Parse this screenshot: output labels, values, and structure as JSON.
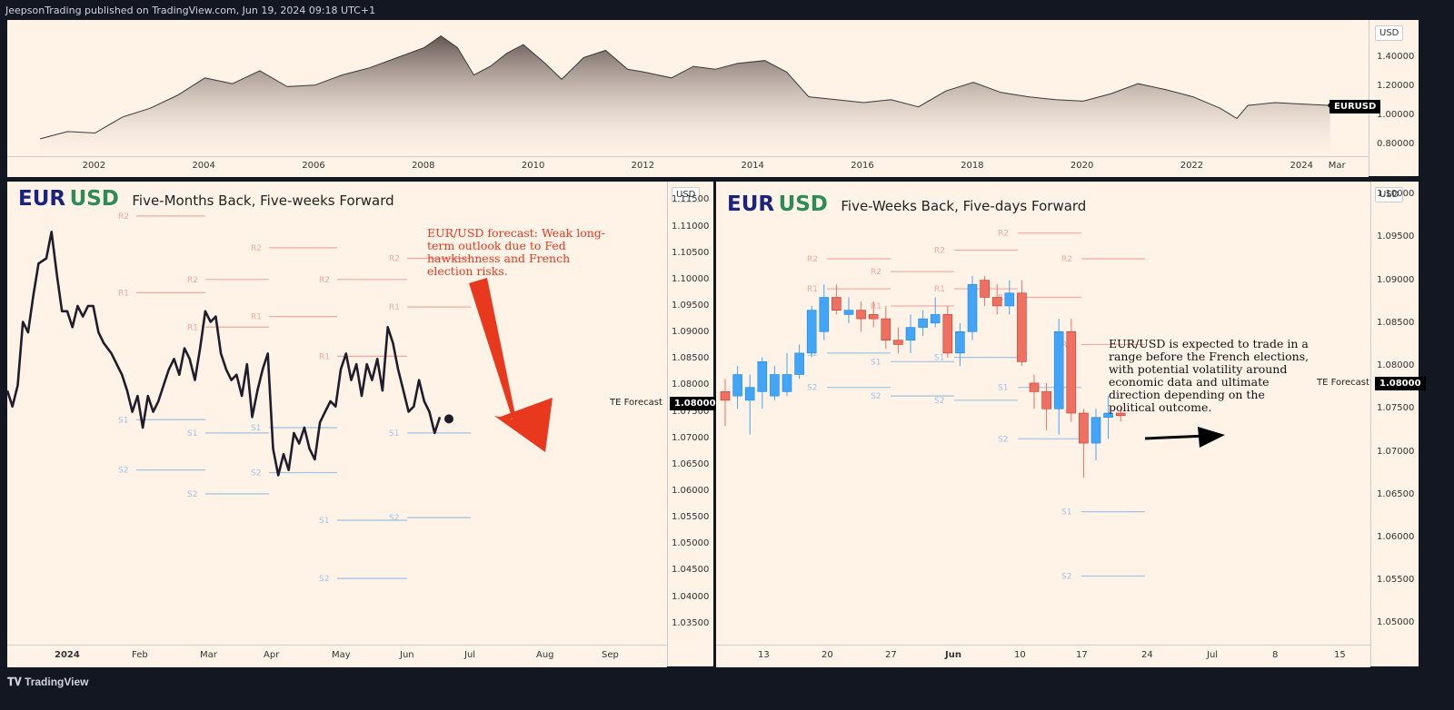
{
  "header": {
    "text": "JeepsonTrading published on TradingView.com, Jun 19, 2024 09:18 UTC+1"
  },
  "footer": {
    "brand": "TradingView"
  },
  "colors": {
    "background": "#fff3e8",
    "resistance": "#f4a79d",
    "support": "#9ec3e6",
    "bull": "#42a5f5",
    "bear": "#ef6f61",
    "arrow_red": "#e8381e"
  },
  "chart_data": [
    {
      "type": "area",
      "symbol": "EURUSD",
      "currency": "USD",
      "x_ticks": [
        "2002",
        "2004",
        "2006",
        "2008",
        "2010",
        "2012",
        "2014",
        "2016",
        "2018",
        "2020",
        "2022",
        "2024",
        "Mar"
      ],
      "y_ticks": [
        "1.40000",
        "1.20000",
        "1.00000",
        "0.80000"
      ],
      "ylim": [
        0.72,
        1.66
      ],
      "last_label": "EURUSD",
      "x": [
        2001.0,
        2001.5,
        2002.0,
        2002.5,
        2003.0,
        2003.5,
        2004.0,
        2004.5,
        2005.0,
        2005.5,
        2006.0,
        2006.5,
        2007.0,
        2007.5,
        2008.0,
        2008.3,
        2008.6,
        2008.9,
        2009.2,
        2009.5,
        2009.8,
        2010.2,
        2010.5,
        2010.9,
        2011.3,
        2011.7,
        2012.0,
        2012.5,
        2012.9,
        2013.3,
        2013.7,
        2014.2,
        2014.6,
        2015.0,
        2015.5,
        2016.0,
        2016.5,
        2017.0,
        2017.5,
        2018.0,
        2018.5,
        2019.0,
        2019.5,
        2020.0,
        2020.5,
        2021.0,
        2021.5,
        2022.0,
        2022.5,
        2022.8,
        2023.0,
        2023.5,
        2024.0,
        2024.5
      ],
      "y": [
        0.84,
        0.89,
        0.88,
        0.99,
        1.05,
        1.14,
        1.26,
        1.22,
        1.31,
        1.2,
        1.21,
        1.28,
        1.33,
        1.4,
        1.47,
        1.55,
        1.47,
        1.28,
        1.34,
        1.43,
        1.49,
        1.36,
        1.25,
        1.4,
        1.45,
        1.32,
        1.3,
        1.26,
        1.34,
        1.32,
        1.36,
        1.38,
        1.3,
        1.13,
        1.11,
        1.09,
        1.11,
        1.06,
        1.17,
        1.23,
        1.16,
        1.13,
        1.11,
        1.1,
        1.15,
        1.22,
        1.18,
        1.13,
        1.05,
        0.98,
        1.07,
        1.09,
        1.08,
        1.07
      ],
      "grid": false
    },
    {
      "type": "line",
      "symbol": "EUR USD",
      "title_left": "EUR",
      "title_right": "USD",
      "subtitle": "Five-Months Back, Five-weeks Forward",
      "currency": "USD",
      "x_ticks": [
        "2024",
        "Feb",
        "Mar",
        "Apr",
        "May",
        "Jun",
        "Jul",
        "Aug",
        "Sep"
      ],
      "y_ticks": [
        "1.11500",
        "1.11000",
        "1.10500",
        "1.10000",
        "1.09500",
        "1.09000",
        "1.08500",
        "1.08000",
        "1.07500",
        "1.07000",
        "1.06500",
        "1.06000",
        "1.05500",
        "1.05000",
        "1.04500",
        "1.04000",
        "1.03500"
      ],
      "ylim": [
        1.031,
        1.1185
      ],
      "forecast_label": "TE Forecast",
      "forecast_value": "1.08000",
      "annotation": "EUR/USD forecast: Weak long-term outlook due to Fed hawkishness and French election risks.",
      "x": [
        0,
        2,
        4,
        6,
        8,
        10,
        12,
        15,
        17,
        19,
        21,
        23,
        25,
        27,
        29,
        31,
        33,
        35,
        37,
        40,
        42,
        44,
        46,
        48,
        50,
        52,
        54,
        56,
        58,
        60,
        62,
        64,
        66,
        68,
        70,
        72,
        74,
        76,
        78,
        80,
        82,
        84,
        86,
        88,
        90,
        92,
        94,
        96,
        98,
        100,
        102,
        104,
        106,
        108,
        110,
        112,
        114,
        116,
        118,
        120,
        122,
        124,
        126,
        128,
        130,
        132,
        134,
        136,
        138,
        140,
        142,
        144,
        146,
        148,
        150,
        152,
        154,
        156,
        158,
        160,
        162,
        164,
        166
      ],
      "y": [
        1.079,
        1.076,
        1.08,
        1.092,
        1.09,
        1.097,
        1.103,
        1.104,
        1.109,
        1.101,
        1.094,
        1.094,
        1.091,
        1.095,
        1.093,
        1.095,
        1.095,
        1.09,
        1.088,
        1.086,
        1.084,
        1.082,
        1.079,
        1.075,
        1.078,
        1.072,
        1.078,
        1.075,
        1.077,
        1.08,
        1.083,
        1.085,
        1.082,
        1.087,
        1.085,
        1.081,
        1.087,
        1.094,
        1.092,
        1.093,
        1.086,
        1.083,
        1.081,
        1.082,
        1.078,
        1.084,
        1.074,
        1.079,
        1.083,
        1.086,
        1.068,
        1.063,
        1.067,
        1.064,
        1.071,
        1.069,
        1.072,
        1.068,
        1.066,
        1.073,
        1.075,
        1.077,
        1.076,
        1.083,
        1.086,
        1.081,
        1.084,
        1.078,
        1.084,
        1.081,
        1.085,
        1.079,
        1.091,
        1.088,
        1.083,
        1.079,
        1.075,
        1.076,
        1.081,
        1.077,
        1.075,
        1.071,
        1.074
      ],
      "x_unit": "days since Jan 1, 2024 (axis shows months)",
      "pivots": [
        {
          "label": "R2",
          "level": 1.112,
          "from": 0,
          "to": 1,
          "kind": "r"
        },
        {
          "label": "R1",
          "level": 1.0975,
          "from": 0,
          "to": 1,
          "kind": "r"
        },
        {
          "label": "S1",
          "level": 1.0735,
          "from": 0,
          "to": 1,
          "kind": "s"
        },
        {
          "label": "S2",
          "level": 1.064,
          "from": 0,
          "to": 1,
          "kind": "s"
        },
        {
          "label": "R2",
          "level": 1.1,
          "from": 1,
          "to": 2,
          "kind": "r"
        },
        {
          "label": "R1",
          "level": 1.091,
          "from": 1,
          "to": 2,
          "kind": "r"
        },
        {
          "label": "S1",
          "level": 1.071,
          "from": 1,
          "to": 2,
          "kind": "s"
        },
        {
          "label": "S2",
          "level": 1.0595,
          "from": 1,
          "to": 2,
          "kind": "s"
        },
        {
          "label": "R2",
          "level": 1.106,
          "from": 2,
          "to": 3,
          "kind": "r"
        },
        {
          "label": "R1",
          "level": 1.093,
          "from": 2,
          "to": 3,
          "kind": "r"
        },
        {
          "label": "S1",
          "level": 1.072,
          "from": 2,
          "to": 3,
          "kind": "s"
        },
        {
          "label": "S2",
          "level": 1.0635,
          "from": 2,
          "to": 3,
          "kind": "s"
        },
        {
          "label": "R2",
          "level": 1.1,
          "from": 3,
          "to": 4,
          "kind": "r"
        },
        {
          "label": "R1",
          "level": 1.0855,
          "from": 3,
          "to": 4,
          "kind": "r"
        },
        {
          "label": "S1",
          "level": 1.0545,
          "from": 3,
          "to": 4,
          "kind": "s"
        },
        {
          "label": "S2",
          "level": 1.0435,
          "from": 3,
          "to": 4,
          "kind": "s"
        },
        {
          "label": "R2",
          "level": 1.104,
          "from": 4,
          "to": 5,
          "kind": "r"
        },
        {
          "label": "R1",
          "level": 1.0948,
          "from": 4,
          "to": 5,
          "kind": "r"
        },
        {
          "label": "S1",
          "level": 1.071,
          "from": 4,
          "to": 5,
          "kind": "s"
        },
        {
          "label": "S2",
          "level": 1.055,
          "from": 4,
          "to": 5,
          "kind": "s"
        }
      ]
    },
    {
      "type": "candlestick",
      "symbol": "EUR USD",
      "title_left": "EUR",
      "title_right": "USD",
      "subtitle": "Five-Weeks Back, Five-days Forward",
      "currency": "USD",
      "x_ticks": [
        "13",
        "20",
        "27",
        "Jun",
        "10",
        "17",
        "24",
        "Jul",
        "8",
        "15"
      ],
      "y_ticks": [
        "1.10000",
        "1.09500",
        "1.09000",
        "1.08500",
        "1.08000",
        "1.07500",
        "1.07000",
        "1.06500",
        "1.06000",
        "1.05500",
        "1.05000"
      ],
      "ylim": [
        1.0475,
        1.1015
      ],
      "forecast_label": "TE Forecast",
      "forecast_value": "1.08000",
      "annotation": "EUR/USD is expected to trade in a range before the French elections, with potential volatility around economic data and ultimate direction depending on the political outcome.",
      "x_unit": "trading days starting May 6, 2024",
      "candles": [
        {
          "d": 0,
          "o": 1.077,
          "h": 1.0785,
          "l": 1.073,
          "c": 1.076
        },
        {
          "d": 1,
          "o": 1.0765,
          "h": 1.08,
          "l": 1.075,
          "c": 1.079
        },
        {
          "d": 2,
          "o": 1.076,
          "h": 1.079,
          "l": 1.072,
          "c": 1.0775
        },
        {
          "d": 3,
          "o": 1.077,
          "h": 1.081,
          "l": 1.075,
          "c": 1.0805
        },
        {
          "d": 4,
          "o": 1.0765,
          "h": 1.08,
          "l": 1.076,
          "c": 1.079
        },
        {
          "d": 5,
          "o": 1.077,
          "h": 1.0815,
          "l": 1.0765,
          "c": 1.079
        },
        {
          "d": 6,
          "o": 1.079,
          "h": 1.0825,
          "l": 1.0785,
          "c": 1.0815
        },
        {
          "d": 7,
          "o": 1.0815,
          "h": 1.087,
          "l": 1.081,
          "c": 1.0865
        },
        {
          "d": 8,
          "o": 1.084,
          "h": 1.0895,
          "l": 1.083,
          "c": 1.088
        },
        {
          "d": 9,
          "o": 1.088,
          "h": 1.0895,
          "l": 1.086,
          "c": 1.0865
        },
        {
          "d": 10,
          "o": 1.086,
          "h": 1.088,
          "l": 1.085,
          "c": 1.0865
        },
        {
          "d": 11,
          "o": 1.0865,
          "h": 1.0875,
          "l": 1.084,
          "c": 1.0855
        },
        {
          "d": 12,
          "o": 1.086,
          "h": 1.0875,
          "l": 1.0845,
          "c": 1.0855
        },
        {
          "d": 13,
          "o": 1.0855,
          "h": 1.087,
          "l": 1.082,
          "c": 1.083
        },
        {
          "d": 14,
          "o": 1.083,
          "h": 1.0845,
          "l": 1.0815,
          "c": 1.0825
        },
        {
          "d": 15,
          "o": 1.083,
          "h": 1.086,
          "l": 1.0815,
          "c": 1.0845
        },
        {
          "d": 16,
          "o": 1.0845,
          "h": 1.0865,
          "l": 1.0835,
          "c": 1.0855
        },
        {
          "d": 17,
          "o": 1.085,
          "h": 1.088,
          "l": 1.0845,
          "c": 1.086
        },
        {
          "d": 18,
          "o": 1.086,
          "h": 1.087,
          "l": 1.081,
          "c": 1.0815
        },
        {
          "d": 19,
          "o": 1.0815,
          "h": 1.085,
          "l": 1.08,
          "c": 1.084
        },
        {
          "d": 20,
          "o": 1.084,
          "h": 1.0905,
          "l": 1.083,
          "c": 1.0895
        },
        {
          "d": 21,
          "o": 1.09,
          "h": 1.0905,
          "l": 1.087,
          "c": 1.088
        },
        {
          "d": 22,
          "o": 1.088,
          "h": 1.0895,
          "l": 1.086,
          "c": 1.087
        },
        {
          "d": 23,
          "o": 1.087,
          "h": 1.09,
          "l": 1.086,
          "c": 1.0885
        },
        {
          "d": 24,
          "o": 1.0885,
          "h": 1.09,
          "l": 1.08,
          "c": 1.0805
        },
        {
          "d": 25,
          "o": 1.078,
          "h": 1.079,
          "l": 1.075,
          "c": 1.077
        },
        {
          "d": 26,
          "o": 1.077,
          "h": 1.078,
          "l": 1.0725,
          "c": 1.075
        },
        {
          "d": 27,
          "o": 1.075,
          "h": 1.0855,
          "l": 1.072,
          "c": 1.084
        },
        {
          "d": 28,
          "o": 1.084,
          "h": 1.0855,
          "l": 1.0735,
          "c": 1.0745
        },
        {
          "d": 29,
          "o": 1.0745,
          "h": 1.075,
          "l": 1.067,
          "c": 1.071
        },
        {
          "d": 30,
          "o": 1.071,
          "h": 1.075,
          "l": 1.069,
          "c": 1.074
        },
        {
          "d": 31,
          "o": 1.074,
          "h": 1.0765,
          "l": 1.0715,
          "c": 1.0745
        },
        {
          "d": 32,
          "o": 1.0745,
          "h": 1.075,
          "l": 1.0735,
          "c": 1.0742
        }
      ],
      "pivots": [
        {
          "label": "R2",
          "level": 1.0925,
          "from": 0,
          "to": 1,
          "kind": "r"
        },
        {
          "label": "R1",
          "level": 1.089,
          "from": 0,
          "to": 1,
          "kind": "r"
        },
        {
          "label": "S1",
          "level": 1.0815,
          "from": 0,
          "to": 1,
          "kind": "s"
        },
        {
          "label": "S2",
          "level": 1.0775,
          "from": 0,
          "to": 1,
          "kind": "s"
        },
        {
          "label": "R2",
          "level": 1.091,
          "from": 1,
          "to": 2,
          "kind": "r"
        },
        {
          "label": "R1",
          "level": 1.087,
          "from": 1,
          "to": 2,
          "kind": "r"
        },
        {
          "label": "S1",
          "level": 1.0805,
          "from": 1,
          "to": 2,
          "kind": "s"
        },
        {
          "label": "S2",
          "level": 1.0765,
          "from": 1,
          "to": 2,
          "kind": "s"
        },
        {
          "label": "R2",
          "level": 1.0935,
          "from": 2,
          "to": 3,
          "kind": "r"
        },
        {
          "label": "R1",
          "level": 1.089,
          "from": 2,
          "to": 3,
          "kind": "r"
        },
        {
          "label": "S1",
          "level": 1.081,
          "from": 2,
          "to": 3,
          "kind": "s"
        },
        {
          "label": "S2",
          "level": 1.076,
          "from": 2,
          "to": 3,
          "kind": "s"
        },
        {
          "label": "R2",
          "level": 1.0955,
          "from": 3,
          "to": 4,
          "kind": "r"
        },
        {
          "label": "R1",
          "level": 1.088,
          "from": 3,
          "to": 4,
          "kind": "r"
        },
        {
          "label": "S1",
          "level": 1.0775,
          "from": 3,
          "to": 4,
          "kind": "s"
        },
        {
          "label": "S2",
          "level": 1.0715,
          "from": 3,
          "to": 4,
          "kind": "s"
        },
        {
          "label": "R2",
          "level": 1.0925,
          "from": 4,
          "to": 5,
          "kind": "r"
        },
        {
          "label": "R1",
          "level": 1.0825,
          "from": 4,
          "to": 5,
          "kind": "r"
        },
        {
          "label": "S1",
          "level": 1.063,
          "from": 4,
          "to": 5,
          "kind": "s"
        },
        {
          "label": "S2",
          "level": 1.0555,
          "from": 4,
          "to": 5,
          "kind": "s"
        }
      ]
    }
  ]
}
